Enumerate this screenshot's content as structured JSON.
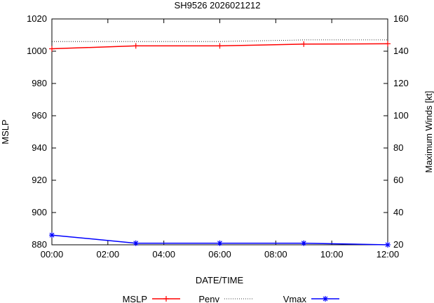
{
  "chart_data": {
    "type": "line",
    "title": "SH9526 2026021212",
    "xlabel": "DATE/TIME",
    "ylabel": "MSLP",
    "y2label": "Maximum Winds [kt]",
    "x_ticks": [
      "00:00",
      "02:00",
      "04:00",
      "06:00",
      "08:00",
      "10:00",
      "12:00"
    ],
    "xlim_hours": [
      0,
      12
    ],
    "ylim": [
      880,
      1020
    ],
    "y_ticks": [
      "880",
      "900",
      "920",
      "940",
      "960",
      "980",
      "1000",
      "1020"
    ],
    "y2lim": [
      20,
      160
    ],
    "y2_ticks": [
      "20",
      "40",
      "60",
      "80",
      "100",
      "120",
      "140",
      "160"
    ],
    "grid": false,
    "legend_position": "bottom",
    "series": [
      {
        "name": "MSLP",
        "axis": "left",
        "color": "#ff0000",
        "marker": "plus",
        "x": [
          0,
          3,
          6,
          9,
          12
        ],
        "values": [
          1001.5,
          1003.3,
          1003.3,
          1004.4,
          1004.6
        ]
      },
      {
        "name": "Penv",
        "axis": "left",
        "color": "#000000",
        "style": "dotted",
        "x": [
          0,
          3,
          6,
          9,
          12
        ],
        "values": [
          1006,
          1006,
          1006,
          1007,
          1007
        ]
      },
      {
        "name": "Vmax",
        "axis": "right",
        "color": "#0000ff",
        "marker": "star",
        "x": [
          0,
          3,
          6,
          9,
          12
        ],
        "values": [
          26,
          21,
          21,
          21,
          20
        ]
      }
    ]
  }
}
